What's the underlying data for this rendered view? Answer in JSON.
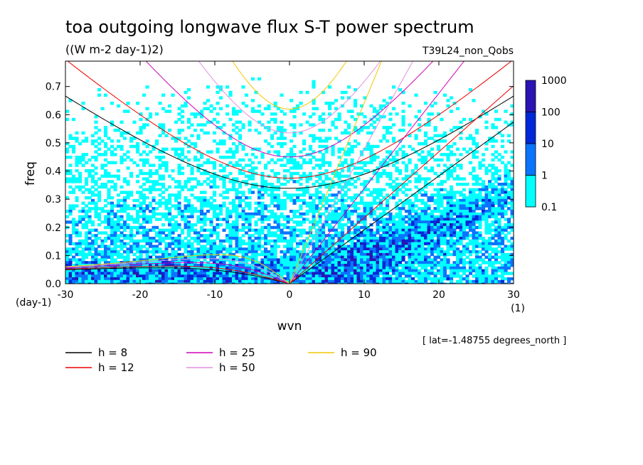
{
  "chart_data": {
    "type": "heatmap",
    "title": "toa outgoing longwave flux S-T power spectrum",
    "units": "((W m-2 day-1)2)",
    "run_label": "T39L24_non_Qobs",
    "xlabel": "wvn",
    "ylabel": "freq",
    "x_unit": "(1)",
    "y_unit": "(day-1)",
    "xlim": [
      -30,
      30
    ],
    "ylim": [
      0,
      0.79
    ],
    "x_ticks": [
      -30,
      -20,
      -10,
      0,
      10,
      20,
      30
    ],
    "y_ticks": [
      0.0,
      0.1,
      0.2,
      0.3,
      0.4,
      0.5,
      0.6,
      0.7
    ],
    "y_tick_labels": [
      "0.0",
      "0.1",
      "0.2",
      "0.3",
      "0.4",
      "0.5",
      "0.6",
      "0.7"
    ],
    "footnote": "[ lat=-1.48755 degrees_north ]",
    "colorbar": {
      "levels": [
        "0.1",
        "1",
        "10",
        "100",
        "1000"
      ],
      "colors": [
        "#00FFFF",
        "#0A74FF",
        "#0028D8",
        "#2A14B4"
      ]
    },
    "dispersion_curves": [
      {
        "name": "h =  8",
        "h": 8,
        "color": "#000000"
      },
      {
        "name": "h = 12",
        "h": 12,
        "color": "#EE0000"
      },
      {
        "name": "h = 25",
        "h": 25,
        "color": "#D000B8"
      },
      {
        "name": "h = 50",
        "h": 50,
        "color": "#E090E0"
      },
      {
        "name": "h = 90",
        "h": 90,
        "color": "#F0C800"
      }
    ]
  }
}
